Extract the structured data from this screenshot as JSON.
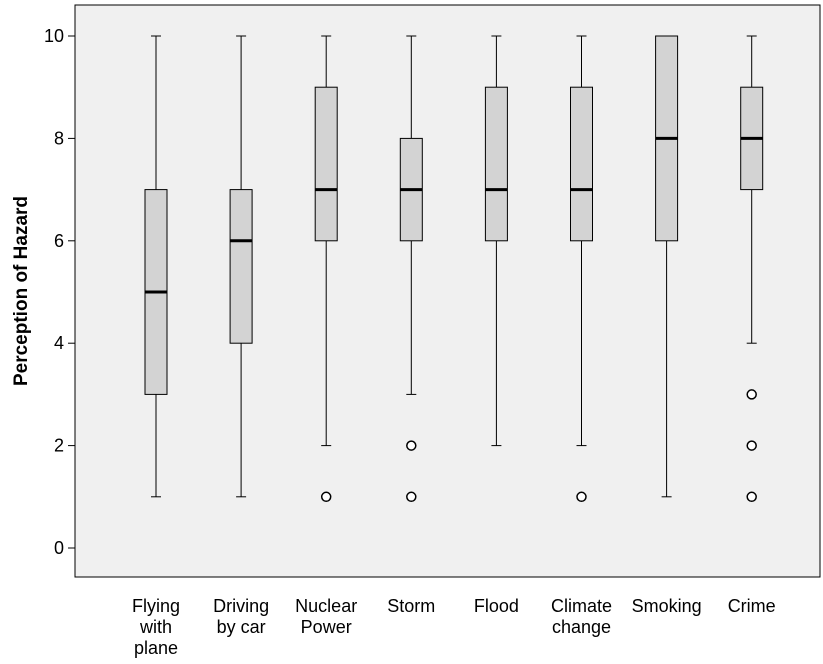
{
  "chart_data": {
    "type": "boxplot",
    "title": "",
    "xlabel": "",
    "ylabel": "Perception of Hazard",
    "ylim": [
      0,
      10.5
    ],
    "yticks": [
      0,
      2,
      4,
      6,
      8,
      10
    ],
    "grid": false,
    "colors": {
      "plot_bg": "#f0f0f0",
      "box_fill": "#d3d3d3",
      "line": "#000000"
    },
    "categories": [
      [
        "Flying",
        "with",
        "plane"
      ],
      [
        "Driving",
        "by car"
      ],
      [
        "Nuclear",
        "Power"
      ],
      [
        "Storm"
      ],
      [
        "Flood"
      ],
      [
        "Climate",
        "change"
      ],
      [
        "Smoking"
      ],
      [
        "Crime"
      ]
    ],
    "boxes": [
      {
        "whisker_low": 1,
        "q1": 3,
        "median": 5,
        "q3": 7,
        "whisker_high": 10,
        "outliers": []
      },
      {
        "whisker_low": 1,
        "q1": 4,
        "median": 6,
        "q3": 7,
        "whisker_high": 10,
        "outliers": []
      },
      {
        "whisker_low": 2,
        "q1": 6,
        "median": 7,
        "q3": 9,
        "whisker_high": 10,
        "outliers": [
          1
        ]
      },
      {
        "whisker_low": 3,
        "q1": 6,
        "median": 7,
        "q3": 8,
        "whisker_high": 10,
        "outliers": [
          2,
          1
        ]
      },
      {
        "whisker_low": 2,
        "q1": 6,
        "median": 7,
        "q3": 9,
        "whisker_high": 10,
        "outliers": []
      },
      {
        "whisker_low": 2,
        "q1": 6,
        "median": 7,
        "q3": 9,
        "whisker_high": 10,
        "outliers": [
          1
        ]
      },
      {
        "whisker_low": 1,
        "q1": 6,
        "median": 8,
        "q3": 10,
        "whisker_high": 10,
        "outliers": []
      },
      {
        "whisker_low": 4,
        "q1": 7,
        "median": 8,
        "q3": 9,
        "whisker_high": 10,
        "outliers": [
          3,
          2,
          1
        ]
      }
    ]
  }
}
